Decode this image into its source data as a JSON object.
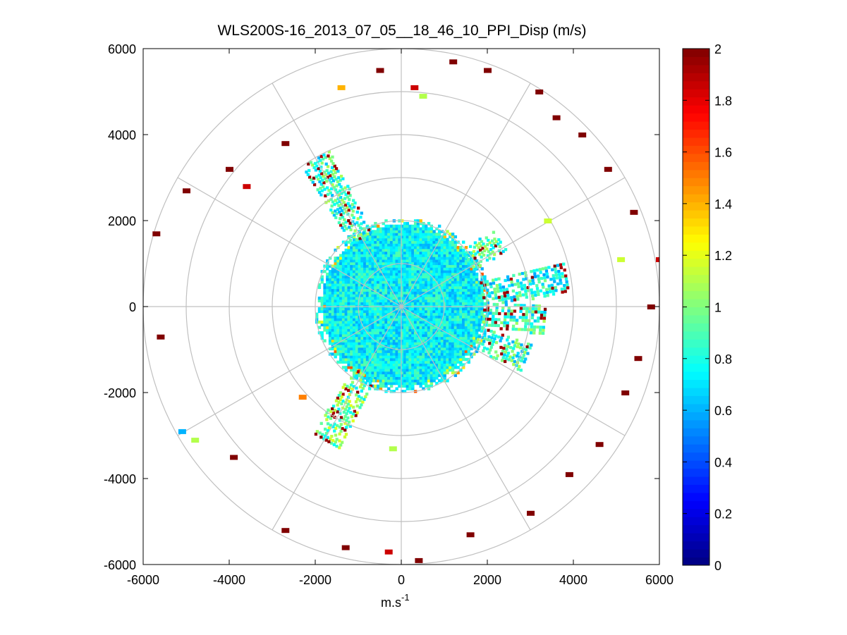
{
  "chart_data": {
    "type": "heatmap",
    "subtype": "polar-ppi-scan",
    "title": "WLS200S-16_2013_07_05__18_46_10_PPI_Disp (m/s)",
    "xlabel": "m.s",
    "xlabel_superscript": "-1",
    "ylabel": "",
    "xlim": [
      -6000,
      6000
    ],
    "ylim": [
      -6000,
      6000
    ],
    "xticks": [
      -6000,
      -4000,
      -2000,
      0,
      2000,
      4000,
      6000
    ],
    "yticks": [
      -6000,
      -4000,
      -2000,
      0,
      2000,
      4000,
      6000
    ],
    "xtick_labels": [
      "-6000",
      "-4000",
      "-2000",
      "0",
      "2000",
      "4000",
      "6000"
    ],
    "ytick_labels": [
      "6000",
      "4000",
      "2000",
      "0",
      "-2000",
      "-4000",
      "-6000"
    ],
    "polar_grid": {
      "ring_radii": [
        1000,
        2000,
        3000,
        4000,
        5000,
        6000
      ],
      "spoke_angles_deg": [
        0,
        30,
        60,
        90,
        120,
        150,
        180,
        210,
        240,
        270,
        300,
        330
      ]
    },
    "colorbar": {
      "colormap": "jet",
      "range": [
        0,
        2
      ],
      "ticks": [
        0,
        0.2,
        0.4,
        0.6,
        0.8,
        1,
        1.2,
        1.4,
        1.6,
        1.8,
        2
      ],
      "tick_labels": [
        "0",
        "0.2",
        "0.4",
        "0.6",
        "0.8",
        "1",
        "1.2",
        "1.4",
        "1.6",
        "1.8",
        "2"
      ]
    },
    "core_region": {
      "description": "dense returns near scanner",
      "radius_m": 2000,
      "typical_value": 0.75
    },
    "lobes": [
      {
        "angle_deg": 330,
        "r_min": 1900,
        "r_max": 4000,
        "value": 0.85
      },
      {
        "angle_deg": 210,
        "r_min": 1800,
        "r_max": 3600,
        "value": 0.95
      },
      {
        "angle_deg": 95,
        "r_min": 1900,
        "r_max": 3300,
        "value": 0.85
      },
      {
        "angle_deg": 80,
        "r_min": 1900,
        "r_max": 3900,
        "value": 0.8
      },
      {
        "angle_deg": 112,
        "r_min": 1900,
        "r_max": 3100,
        "value": 0.85
      },
      {
        "angle_deg": 55,
        "r_min": 1900,
        "r_max": 2800,
        "value": 0.9
      }
    ],
    "outliers": [
      {
        "x": 1200,
        "y": 5700,
        "v": 2
      },
      {
        "x": 2000,
        "y": 5500,
        "v": 2
      },
      {
        "x": 3200,
        "y": 5000,
        "v": 2
      },
      {
        "x": 3600,
        "y": 4400,
        "v": 2
      },
      {
        "x": 4200,
        "y": 4000,
        "v": 2
      },
      {
        "x": 4800,
        "y": 3200,
        "v": 2
      },
      {
        "x": 5400,
        "y": 2200,
        "v": 2
      },
      {
        "x": 5100,
        "y": 1100,
        "v": 1.15
      },
      {
        "x": 5800,
        "y": 0,
        "v": 2
      },
      {
        "x": 5500,
        "y": -1200,
        "v": 2
      },
      {
        "x": 5200,
        "y": -2000,
        "v": 2
      },
      {
        "x": 4600,
        "y": -3200,
        "v": 2
      },
      {
        "x": 3900,
        "y": -3900,
        "v": 2
      },
      {
        "x": 3000,
        "y": -4800,
        "v": 2
      },
      {
        "x": 1600,
        "y": -5300,
        "v": 2
      },
      {
        "x": 400,
        "y": -5900,
        "v": 2
      },
      {
        "x": -300,
        "y": -5700,
        "v": 1.85
      },
      {
        "x": -1300,
        "y": -5600,
        "v": 2
      },
      {
        "x": -2700,
        "y": -5200,
        "v": 2
      },
      {
        "x": -3900,
        "y": -3500,
        "v": 2
      },
      {
        "x": -5100,
        "y": -2900,
        "v": 0.6
      },
      {
        "x": -4800,
        "y": -3100,
        "v": 1.1
      },
      {
        "x": -5600,
        "y": -700,
        "v": 2
      },
      {
        "x": -5700,
        "y": 1700,
        "v": 2
      },
      {
        "x": -5000,
        "y": 2700,
        "v": 2
      },
      {
        "x": -4000,
        "y": 3200,
        "v": 2
      },
      {
        "x": -3600,
        "y": 2800,
        "v": 1.85
      },
      {
        "x": -2700,
        "y": 3800,
        "v": 2
      },
      {
        "x": -1400,
        "y": 5100,
        "v": 1.4
      },
      {
        "x": -500,
        "y": 5500,
        "v": 2
      },
      {
        "x": 300,
        "y": 5100,
        "v": 1.85
      },
      {
        "x": 500,
        "y": 4900,
        "v": 1.1
      },
      {
        "x": 6000,
        "y": 1100,
        "v": 1.85
      },
      {
        "x": 3400,
        "y": 2000,
        "v": 1.15
      },
      {
        "x": -2300,
        "y": -2100,
        "v": 1.5
      },
      {
        "x": -200,
        "y": -3300,
        "v": 1.1
      }
    ]
  }
}
